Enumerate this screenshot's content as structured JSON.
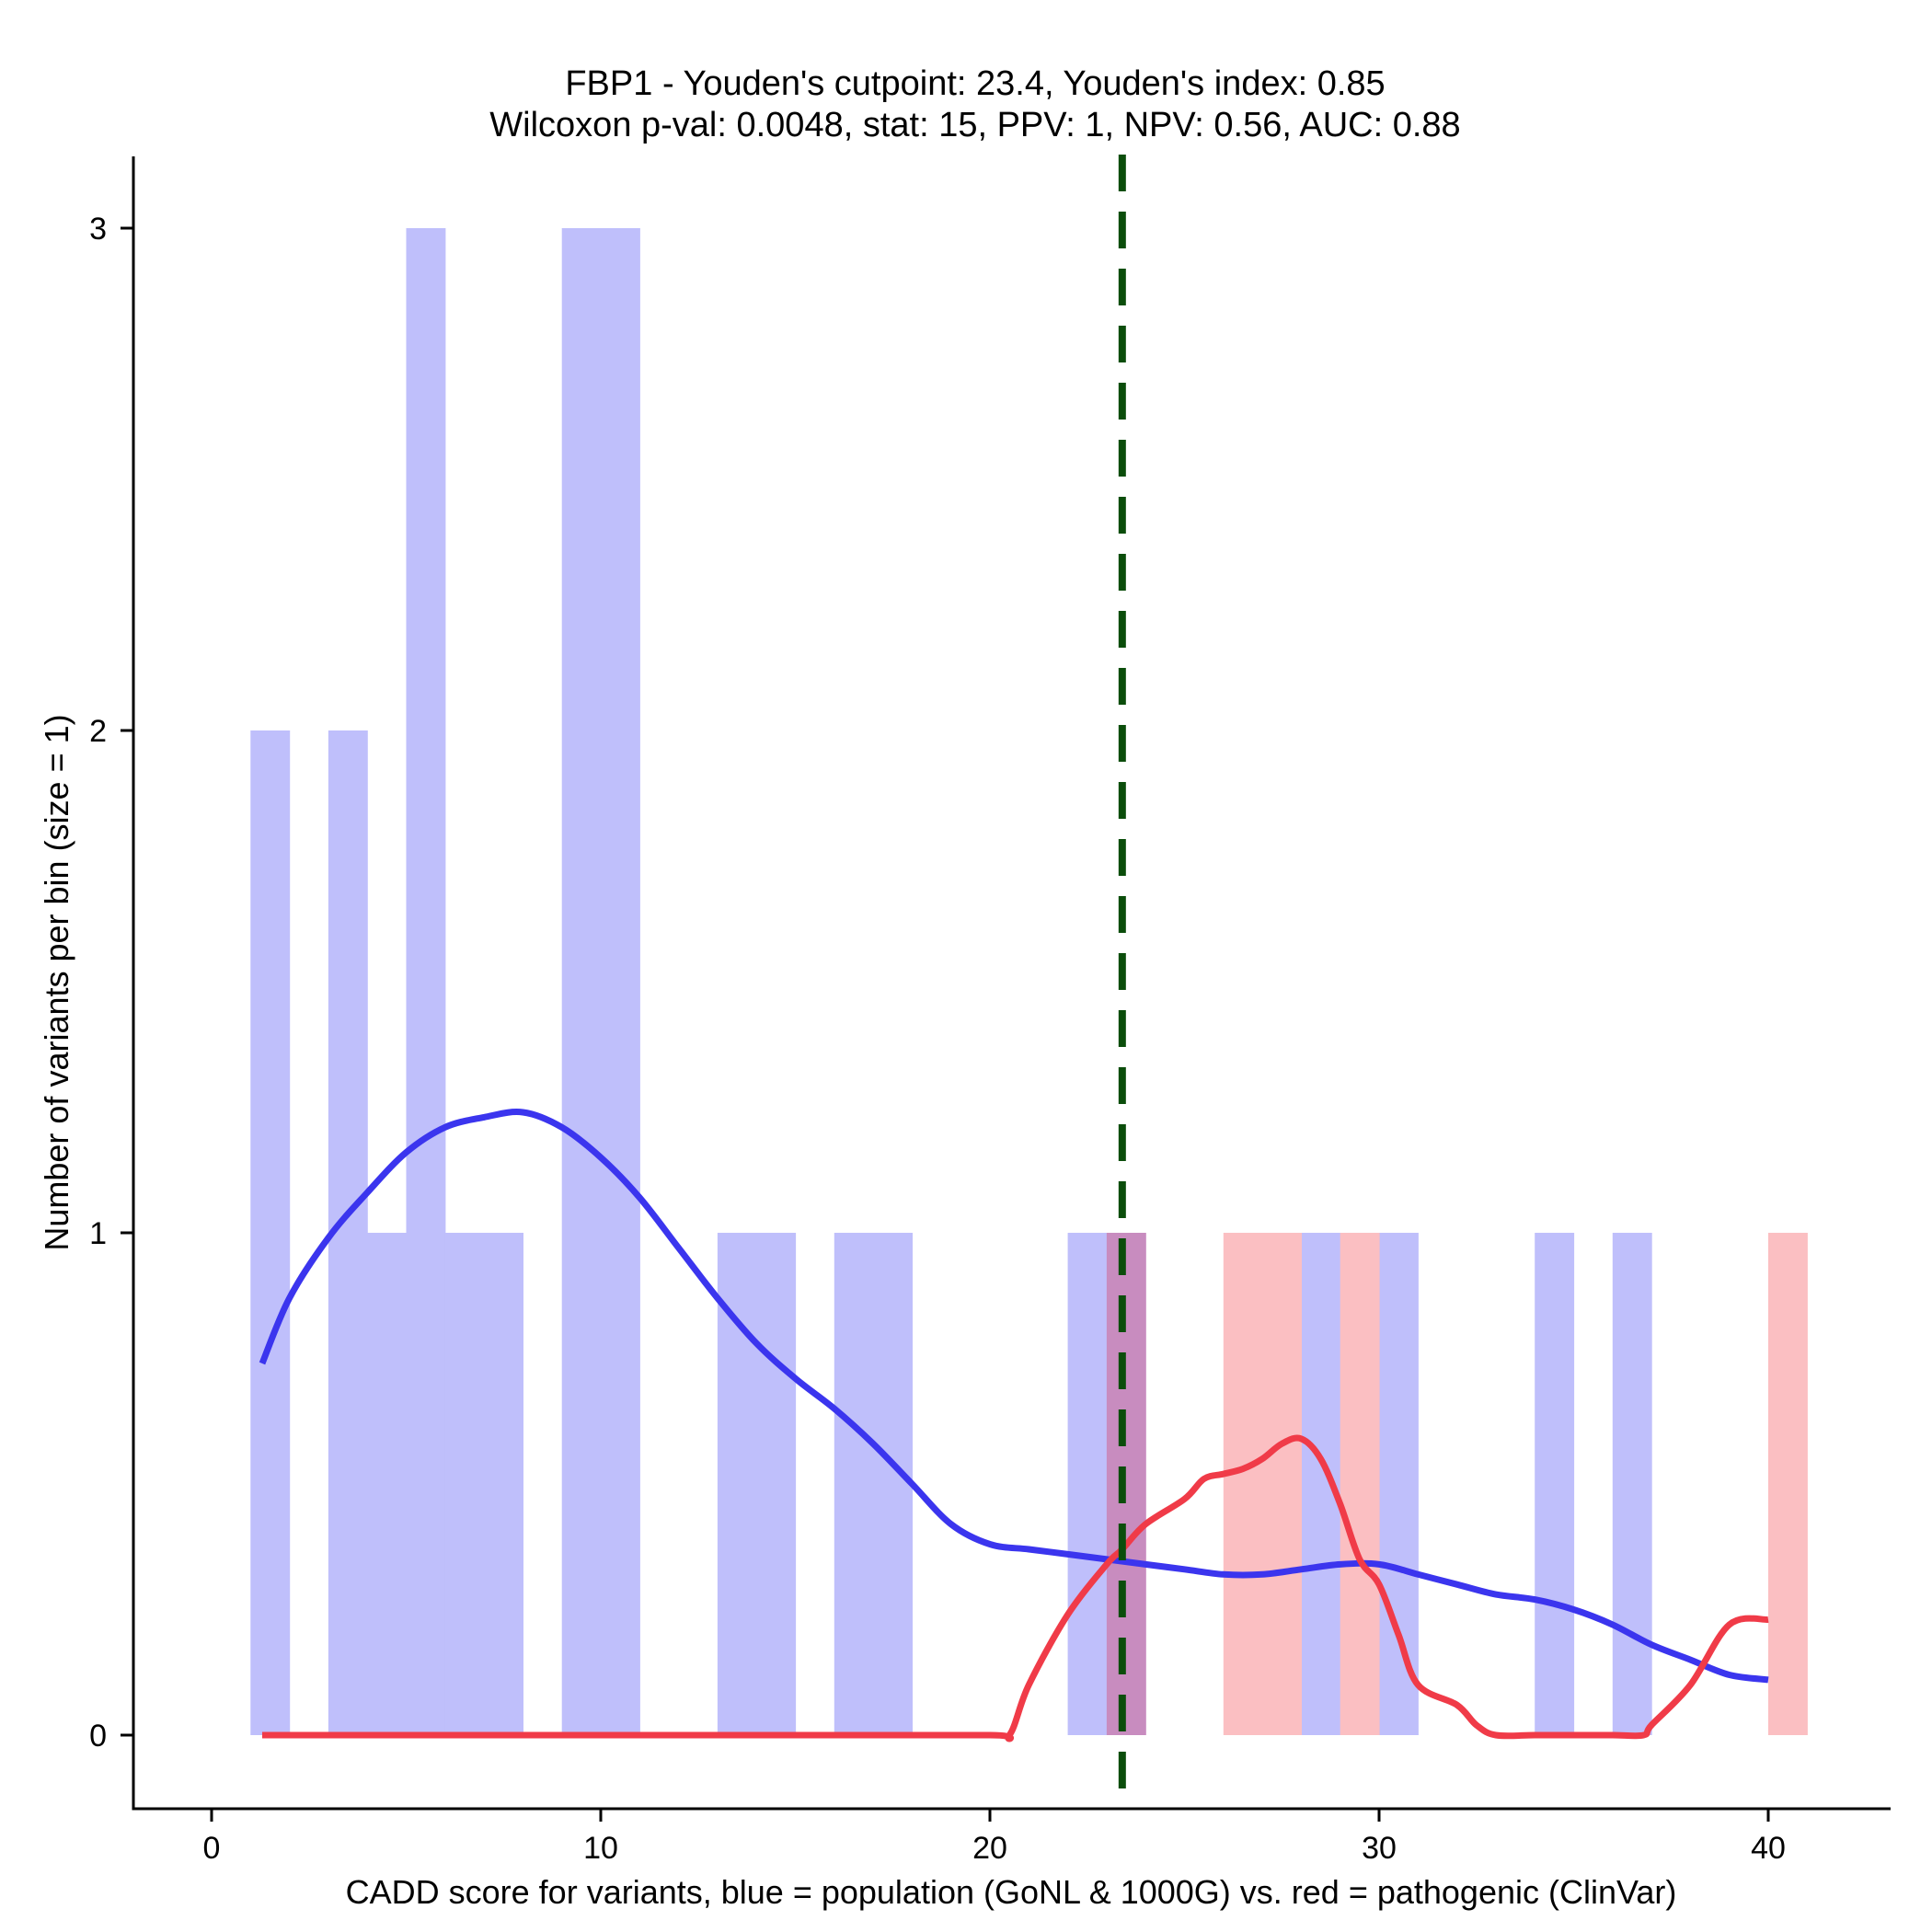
{
  "chart_data": {
    "type": "histogram",
    "title_line1": "FBP1 - Youden's cutpoint: 23.4, Youden's index: 0.85",
    "title_line2": "Wilcoxon p-val: 0.0048, stat: 15, PPV: 1, NPV: 0.56, AUC: 0.88",
    "xlabel": "CADD score for variants, blue = population (GoNL & 1000G) vs. red = pathogenic (ClinVar)",
    "ylabel": "Number of variants per bin (size = 1)",
    "xlim": [
      -2.1,
      43
    ],
    "ylim": [
      -0.15,
      3.15
    ],
    "x_ticks": [
      0,
      10,
      20,
      30,
      40
    ],
    "y_ticks": [
      0,
      1,
      2,
      3
    ],
    "cutpoint": 23.4,
    "colors": {
      "population_bar": "#bfbffb",
      "pathogenic_bar": "#fbbfc2",
      "overlap_bar": "#c88cbf",
      "population_line": "#3b35ee",
      "pathogenic_line": "#f03b48",
      "cutpoint_line": "#0b4d0b"
    },
    "series": [
      {
        "name": "population",
        "bins": [
          {
            "x0": 1,
            "x1": 2,
            "count": 2
          },
          {
            "x0": 3,
            "x1": 4,
            "count": 2
          },
          {
            "x0": 4,
            "x1": 5,
            "count": 1
          },
          {
            "x0": 5,
            "x1": 6,
            "count": 3
          },
          {
            "x0": 6,
            "x1": 7,
            "count": 1
          },
          {
            "x0": 7,
            "x1": 8,
            "count": 1
          },
          {
            "x0": 9,
            "x1": 10,
            "count": 3
          },
          {
            "x0": 10,
            "x1": 11,
            "count": 3
          },
          {
            "x0": 13,
            "x1": 14,
            "count": 1
          },
          {
            "x0": 14,
            "x1": 15,
            "count": 1
          },
          {
            "x0": 16,
            "x1": 17,
            "count": 1
          },
          {
            "x0": 17,
            "x1": 18,
            "count": 1
          },
          {
            "x0": 22,
            "x1": 23,
            "count": 1
          },
          {
            "x0": 23,
            "x1": 24,
            "count": 1
          },
          {
            "x0": 28,
            "x1": 29,
            "count": 1
          },
          {
            "x0": 30,
            "x1": 31,
            "count": 1
          },
          {
            "x0": 34,
            "x1": 35,
            "count": 1
          },
          {
            "x0": 36,
            "x1": 37,
            "count": 1
          }
        ],
        "density_x": [
          1.3,
          2,
          3,
          4,
          5,
          6,
          7,
          8,
          9,
          10,
          11,
          12,
          13,
          14,
          15,
          16,
          17,
          18,
          19,
          20,
          21,
          22,
          23,
          24,
          25,
          26,
          27,
          28,
          29,
          30,
          31,
          32,
          33,
          34,
          35,
          36,
          37,
          38,
          39,
          40
        ],
        "density_y": [
          0.74,
          0.87,
          0.99,
          1.08,
          1.16,
          1.21,
          1.23,
          1.24,
          1.21,
          1.15,
          1.07,
          0.97,
          0.87,
          0.78,
          0.71,
          0.65,
          0.58,
          0.5,
          0.42,
          0.38,
          0.37,
          0.36,
          0.35,
          0.34,
          0.33,
          0.32,
          0.32,
          0.33,
          0.34,
          0.34,
          0.32,
          0.3,
          0.28,
          0.27,
          0.25,
          0.22,
          0.18,
          0.15,
          0.12,
          0.11
        ]
      },
      {
        "name": "pathogenic",
        "bins": [
          {
            "x0": 23,
            "x1": 24,
            "count": 1
          },
          {
            "x0": 26,
            "x1": 27,
            "count": 1
          },
          {
            "x0": 27,
            "x1": 28,
            "count": 1
          },
          {
            "x0": 29,
            "x1": 30,
            "count": 1
          },
          {
            "x0": 40,
            "x1": 41,
            "count": 1
          }
        ],
        "density_x": [
          1.3,
          5,
          10,
          15,
          20,
          20.5,
          21,
          22,
          23,
          23.4,
          24,
          25,
          25.5,
          26,
          26.5,
          27,
          27.5,
          28,
          28.5,
          29,
          29.5,
          30,
          30.5,
          31,
          32,
          32.5,
          33,
          34,
          35,
          36,
          36.8,
          37,
          38,
          39,
          40
        ],
        "density_y": [
          0,
          0,
          0,
          0,
          0,
          0.0,
          0.1,
          0.24,
          0.34,
          0.37,
          0.42,
          0.47,
          0.51,
          0.52,
          0.53,
          0.55,
          0.58,
          0.59,
          0.55,
          0.46,
          0.35,
          0.3,
          0.2,
          0.1,
          0.06,
          0.02,
          0,
          0,
          0,
          0,
          0,
          0.02,
          0.1,
          0.22,
          0.23
        ]
      }
    ]
  }
}
